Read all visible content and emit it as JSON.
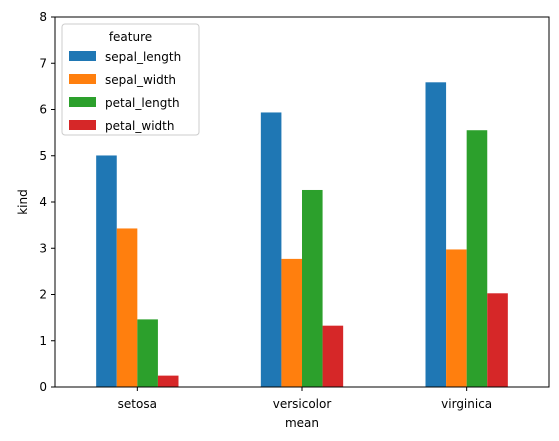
{
  "chart_data": {
    "type": "bar",
    "title": "",
    "xlabel": "mean",
    "ylabel": "kind",
    "categories": [
      "setosa",
      "versicolor",
      "virginica"
    ],
    "ylim": [
      0,
      8
    ],
    "yticks": [
      0,
      1,
      2,
      3,
      4,
      5,
      6,
      7,
      8
    ],
    "grid": false,
    "legend": {
      "title": "feature",
      "placement": "top-left"
    },
    "series": [
      {
        "name": "sepal_length",
        "color": "#1f77b4",
        "values": [
          5.006,
          5.936,
          6.588
        ]
      },
      {
        "name": "sepal_width",
        "color": "#ff7f0e",
        "values": [
          3.428,
          2.77,
          2.974
        ]
      },
      {
        "name": "petal_length",
        "color": "#2ca02c",
        "values": [
          1.462,
          4.26,
          5.552
        ]
      },
      {
        "name": "petal_width",
        "color": "#d62728",
        "values": [
          0.246,
          1.326,
          2.026
        ]
      }
    ]
  }
}
